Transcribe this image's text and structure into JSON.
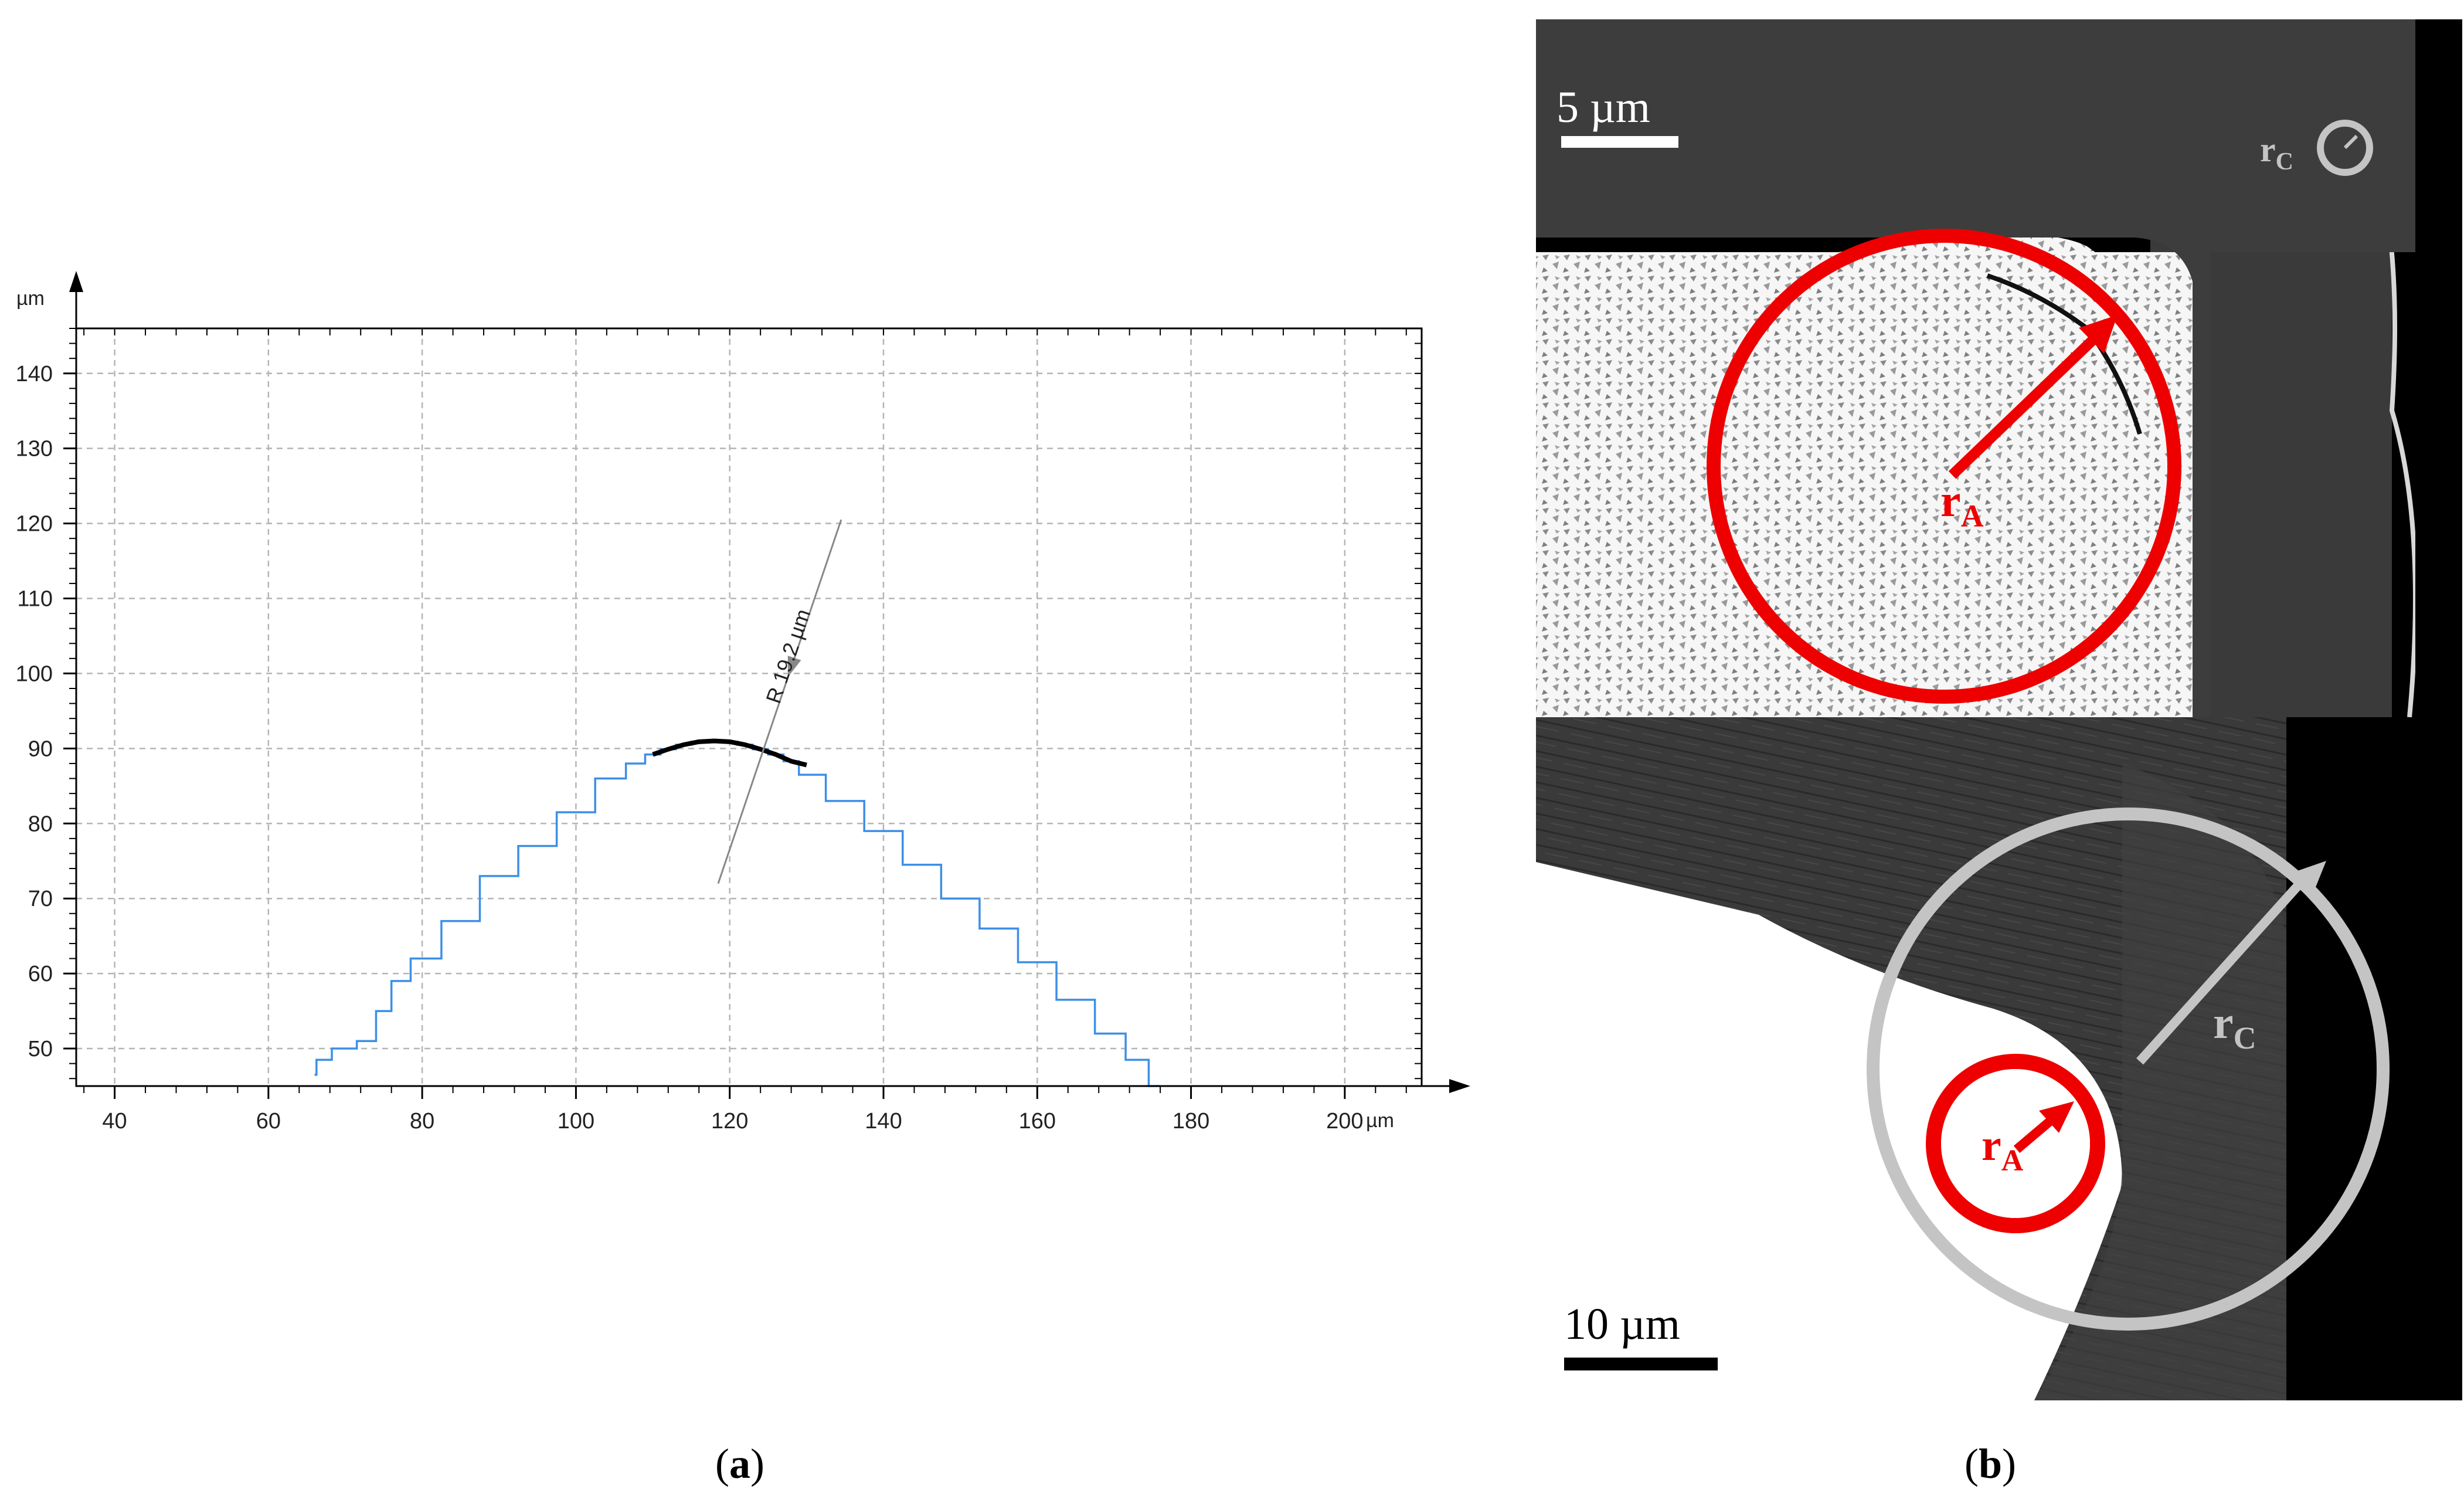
{
  "panel_a": {
    "caption_letter": "a",
    "chart_data": {
      "type": "line",
      "title": "",
      "xlabel": "",
      "ylabel": "",
      "x_unit": "µm",
      "y_unit": "µm",
      "xlim": [
        35,
        210
      ],
      "ylim": [
        45,
        146
      ],
      "x_ticks": [
        40,
        60,
        80,
        100,
        120,
        140,
        160,
        180,
        200
      ],
      "y_ticks": [
        50,
        60,
        70,
        80,
        90,
        100,
        110,
        120,
        130,
        140
      ],
      "grid": true,
      "series": [
        {
          "color": "#3d8fe6",
          "x": [
            66,
            66.5,
            70,
            73,
            75,
            77,
            80,
            85,
            90,
            95,
            100,
            105,
            108,
            110,
            112,
            114,
            116,
            118,
            120,
            122,
            124,
            126,
            128,
            130,
            135,
            140,
            145,
            150,
            155,
            160,
            165,
            170,
            173,
            176
          ],
          "y": [
            46.5,
            48.5,
            50,
            51,
            55,
            59,
            62,
            67,
            73,
            77,
            81.5,
            86,
            88,
            89.2,
            89.9,
            90.5,
            90.9,
            91,
            90.9,
            90.5,
            89.9,
            89.2,
            88.3,
            86.5,
            83,
            79,
            74.5,
            70,
            66,
            61.5,
            56.5,
            52,
            48.5,
            45
          ]
        }
      ],
      "annotations": [
        {
          "type": "fitted-arc",
          "label": "R 19.2 µm",
          "radius": 19.2,
          "arc_color": "#000000",
          "arc_x": [
            110,
            112,
            114,
            116,
            118,
            120,
            122,
            124,
            126,
            128,
            130
          ],
          "arc_y": [
            89.2,
            89.9,
            90.5,
            90.9,
            91,
            90.9,
            90.5,
            89.9,
            89.2,
            88.3,
            87.8
          ],
          "leader_from": [
            118.5,
            72
          ],
          "leader_to": [
            134.5,
            120.5
          ]
        }
      ]
    }
  },
  "panel_b": {
    "caption_letter": "b",
    "top_image": {
      "scale_bar_label": "5 µm",
      "label_rA": "r",
      "label_rA_sub": "A",
      "label_rC": "r",
      "label_rC_sub": "C"
    },
    "bottom_image": {
      "scale_bar_label": "10 µm",
      "label_rA": "r",
      "label_rA_sub": "A",
      "label_rC": "r",
      "label_rC_sub": "C"
    },
    "colors": {
      "highlight_red": "#ee0000",
      "highlight_gray": "#c4c4c4",
      "coating_dark": "#3c3c3c",
      "background_black": "#000000",
      "substrate_white": "#f6f6f6"
    }
  }
}
